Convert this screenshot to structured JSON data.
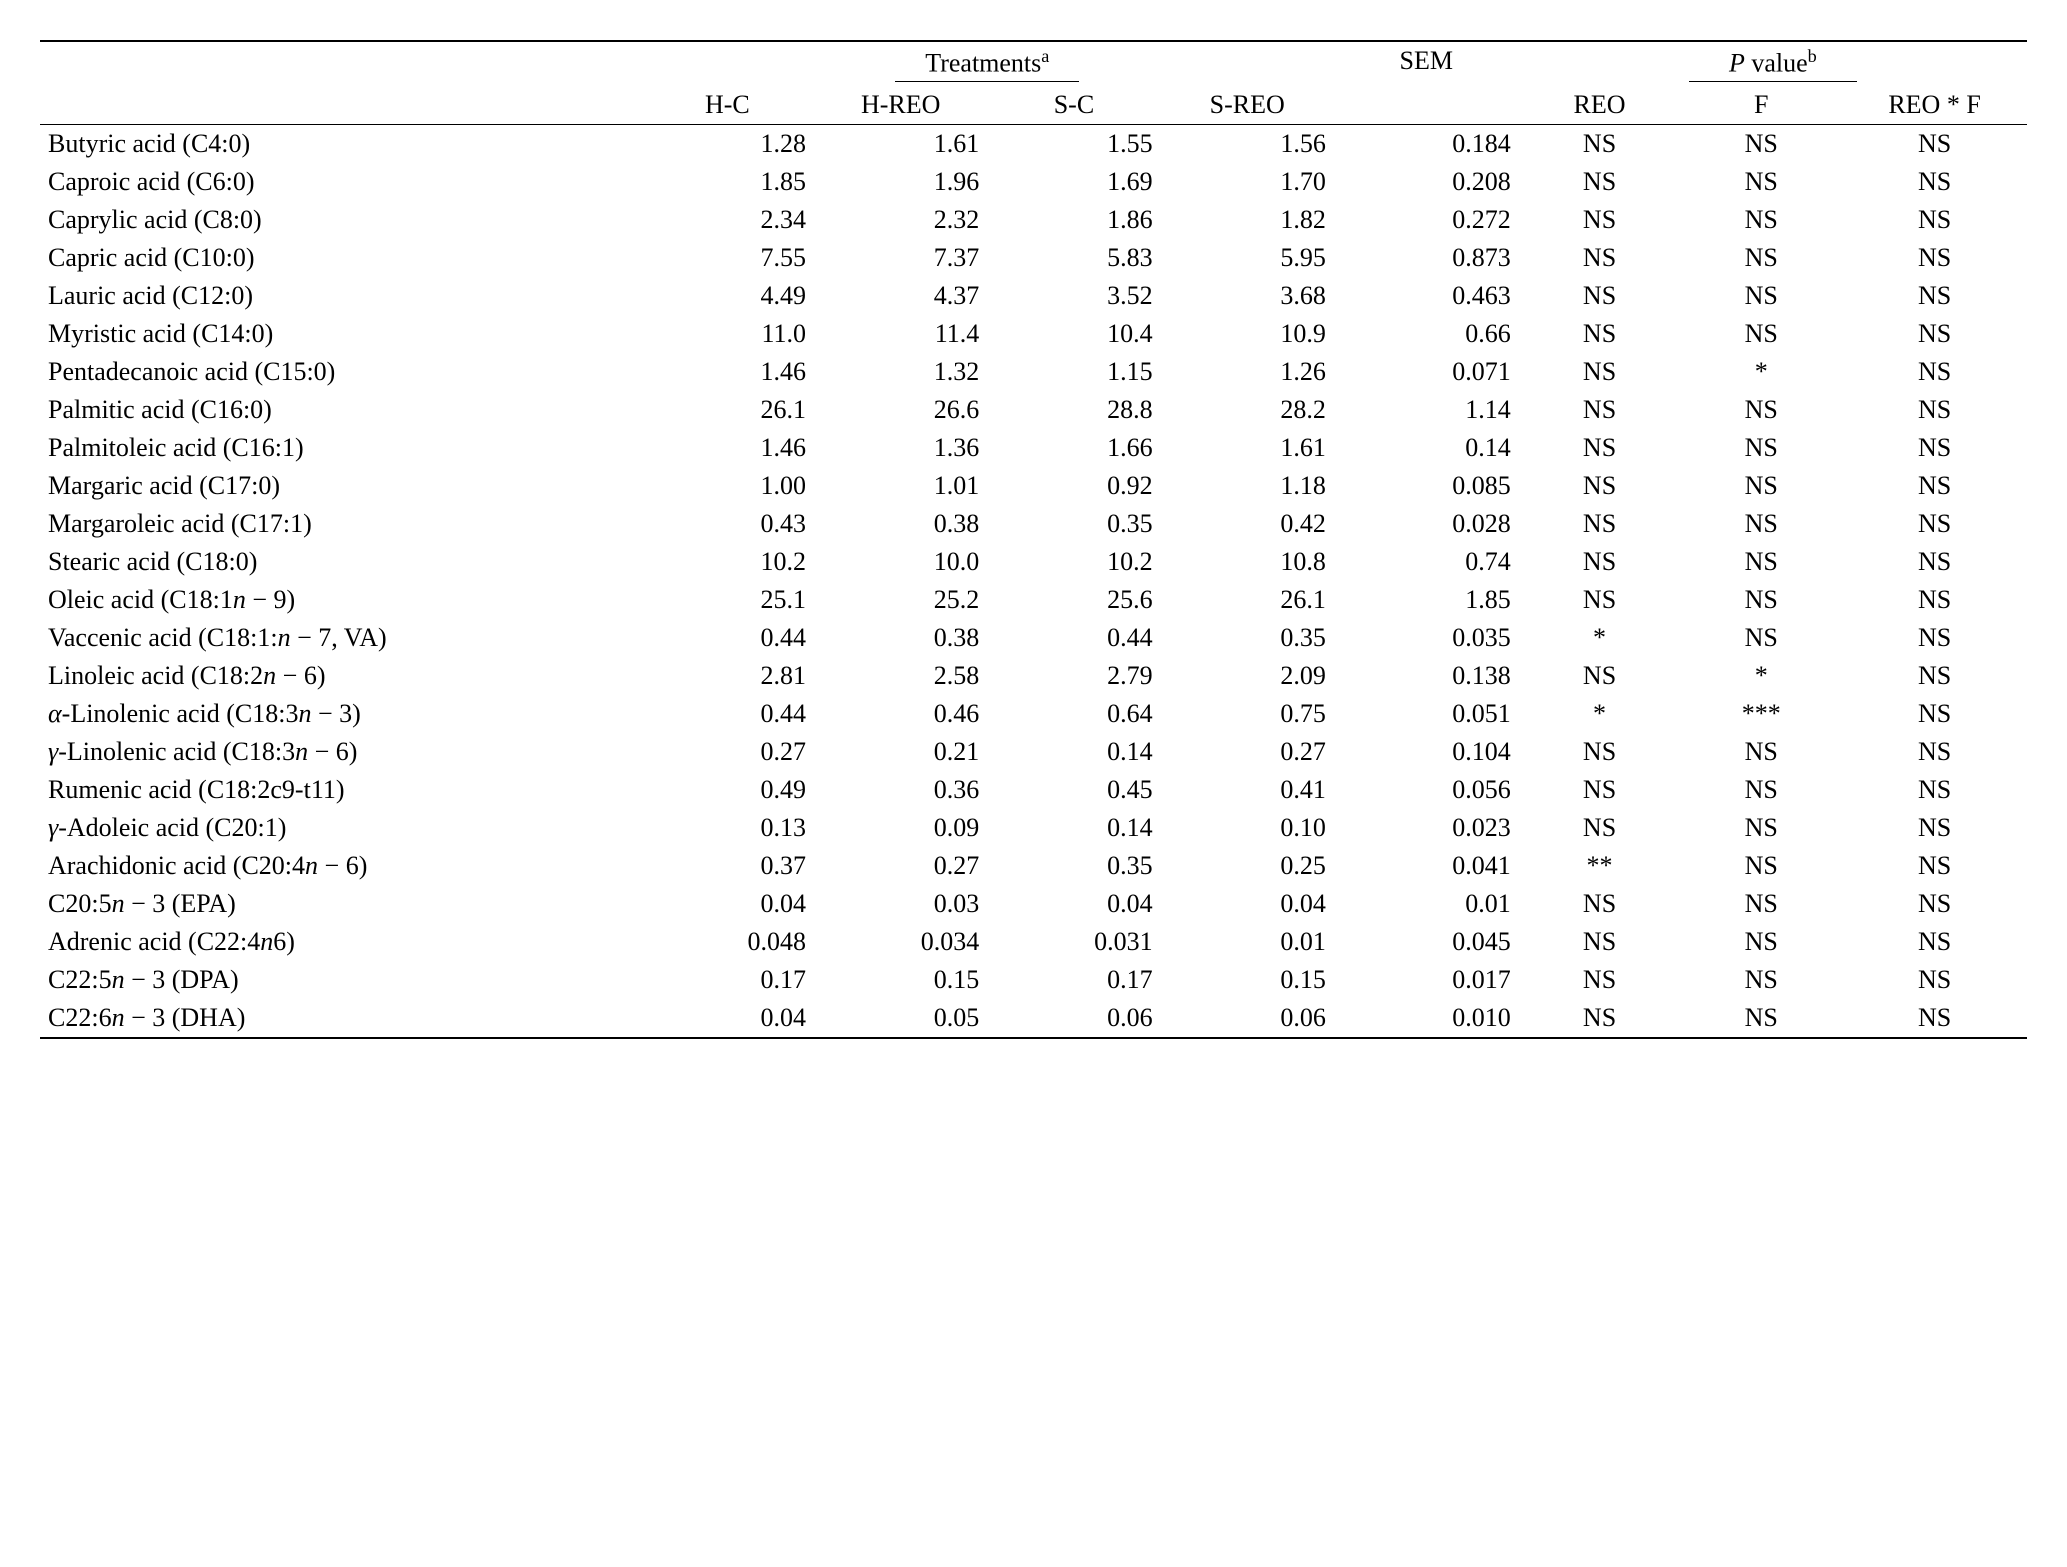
{
  "header": {
    "treatments": "Treatments",
    "treatments_sup": "a",
    "sem": "SEM",
    "pvalue_prefix_italic": "P",
    "pvalue_rest": " value",
    "pvalue_sup": "b",
    "cols": {
      "hc": "H-C",
      "hreo": "H-REO",
      "sc": "S-C",
      "sreo": "S-REO",
      "reo": "REO",
      "f": "F",
      "reoxf": "REO * F"
    }
  },
  "rows": [
    {
      "label_plain": "Butyric acid (C4:0)",
      "hc": "1.28",
      "hreo": "1.61",
      "sc": "1.55",
      "sreo": "1.56",
      "sem": "0.184",
      "reo": "NS",
      "f": "NS",
      "reoxf": "NS"
    },
    {
      "label_plain": "Caproic acid (C6:0)",
      "hc": "1.85",
      "hreo": "1.96",
      "sc": "1.69",
      "sreo": "1.70",
      "sem": "0.208",
      "reo": "NS",
      "f": "NS",
      "reoxf": "NS"
    },
    {
      "label_plain": "Caprylic acid (C8:0)",
      "hc": "2.34",
      "hreo": "2.32",
      "sc": "1.86",
      "sreo": "1.82",
      "sem": "0.272",
      "reo": "NS",
      "f": "NS",
      "reoxf": "NS"
    },
    {
      "label_plain": "Capric acid (C10:0)",
      "hc": "7.55",
      "hreo": "7.37",
      "sc": "5.83",
      "sreo": "5.95",
      "sem": "0.873",
      "reo": "NS",
      "f": "NS",
      "reoxf": "NS"
    },
    {
      "label_plain": "Lauric acid (C12:0)",
      "hc": "4.49",
      "hreo": "4.37",
      "sc": "3.52",
      "sreo": "3.68",
      "sem": "0.463",
      "reo": "NS",
      "f": "NS",
      "reoxf": "NS"
    },
    {
      "label_plain": "Myristic acid (C14:0)",
      "hc": "11.0",
      "hreo": "11.4",
      "sc": "10.4",
      "sreo": "10.9",
      "sem": "0.66",
      "reo": "NS",
      "f": "NS",
      "reoxf": "NS"
    },
    {
      "label_plain": "Pentadecanoic acid (C15:0)",
      "hc": "1.46",
      "hreo": "1.32",
      "sc": "1.15",
      "sreo": "1.26",
      "sem": "0.071",
      "reo": "NS",
      "f": "*",
      "reoxf": "NS"
    },
    {
      "label_plain": "Palmitic acid (C16:0)",
      "hc": "26.1",
      "hreo": "26.6",
      "sc": "28.8",
      "sreo": "28.2",
      "sem": "1.14",
      "reo": "NS",
      "f": "NS",
      "reoxf": "NS"
    },
    {
      "label_plain": "Palmitoleic acid (C16:1)",
      "hc": "1.46",
      "hreo": "1.36",
      "sc": "1.66",
      "sreo": "1.61",
      "sem": "0.14",
      "reo": "NS",
      "f": "NS",
      "reoxf": "NS"
    },
    {
      "label_plain": "Margaric acid (C17:0)",
      "hc": "1.00",
      "hreo": "1.01",
      "sc": "0.92",
      "sreo": "1.18",
      "sem": "0.085",
      "reo": "NS",
      "f": "NS",
      "reoxf": "NS"
    },
    {
      "label_plain": "Margaroleic acid (C17:1)",
      "hc": "0.43",
      "hreo": "0.38",
      "sc": "0.35",
      "sreo": "0.42",
      "sem": "0.028",
      "reo": "NS",
      "f": "NS",
      "reoxf": "NS"
    },
    {
      "label_plain": "Stearic acid (C18:0)",
      "hc": "10.2",
      "hreo": "10.0",
      "sc": "10.2",
      "sreo": "10.8",
      "sem": "0.74",
      "reo": "NS",
      "f": "NS",
      "reoxf": "NS"
    },
    {
      "label_html": "Oleic acid (C18:1<span class=\"italic\">n</span> − 9)",
      "hc": "25.1",
      "hreo": "25.2",
      "sc": "25.6",
      "sreo": "26.1",
      "sem": "1.85",
      "reo": "NS",
      "f": "NS",
      "reoxf": "NS"
    },
    {
      "label_html": "Vaccenic acid (C18:1:<span class=\"italic\">n</span> − 7, VA)",
      "hc": "0.44",
      "hreo": "0.38",
      "sc": "0.44",
      "sreo": "0.35",
      "sem": "0.035",
      "reo": "*",
      "f": "NS",
      "reoxf": "NS"
    },
    {
      "label_html": "Linoleic acid (C18:2<span class=\"italic\">n</span> − 6)",
      "hc": "2.81",
      "hreo": "2.58",
      "sc": "2.79",
      "sreo": "2.09",
      "sem": "0.138",
      "reo": "NS",
      "f": "*",
      "reoxf": "NS"
    },
    {
      "label_html": "<span class=\"italic\">α</span>-Linolenic acid (C18:3<span class=\"italic\">n</span> − 3)",
      "hc": "0.44",
      "hreo": "0.46",
      "sc": "0.64",
      "sreo": "0.75",
      "sem": "0.051",
      "reo": "*",
      "f": "***",
      "reoxf": "NS"
    },
    {
      "label_html": "<span class=\"italic\">γ</span>-Linolenic acid (C18:3<span class=\"italic\">n</span> − 6)",
      "hc": "0.27",
      "hreo": "0.21",
      "sc": "0.14",
      "sreo": "0.27",
      "sem": "0.104",
      "reo": "NS",
      "f": "NS",
      "reoxf": "NS"
    },
    {
      "label_plain": "Rumenic acid (C18:2c9-t11)",
      "hc": "0.49",
      "hreo": "0.36",
      "sc": "0.45",
      "sreo": "0.41",
      "sem": "0.056",
      "reo": "NS",
      "f": "NS",
      "reoxf": "NS"
    },
    {
      "label_html": "<span class=\"italic\">γ</span>-Adoleic acid (C20:1)",
      "hc": "0.13",
      "hreo": "0.09",
      "sc": "0.14",
      "sreo": "0.10",
      "sem": "0.023",
      "reo": "NS",
      "f": "NS",
      "reoxf": "NS"
    },
    {
      "label_html": "Arachidonic acid (C20:4<span class=\"italic\">n</span> − 6)",
      "hc": "0.37",
      "hreo": "0.27",
      "sc": "0.35",
      "sreo": "0.25",
      "sem": "0.041",
      "reo": "**",
      "f": "NS",
      "reoxf": "NS"
    },
    {
      "label_html": "C20:5<span class=\"italic\">n</span> − 3 (EPA)",
      "hc": "0.04",
      "hreo": "0.03",
      "sc": "0.04",
      "sreo": "0.04",
      "sem": "0.01",
      "reo": "NS",
      "f": "NS",
      "reoxf": "NS"
    },
    {
      "label_html": "Adrenic acid (C22:4<span class=\"italic\">n</span>6)",
      "hc": "0.048",
      "hreo": "0.034",
      "sc": "0.031",
      "sreo": "0.01",
      "sem": "0.045",
      "reo": "NS",
      "f": "NS",
      "reoxf": "NS"
    },
    {
      "label_html": "C22:5<span class=\"italic\">n</span> − 3 (DPA)",
      "hc": "0.17",
      "hreo": "0.15",
      "sc": "0.17",
      "sreo": "0.15",
      "sem": "0.017",
      "reo": "NS",
      "f": "NS",
      "reoxf": "NS"
    },
    {
      "label_html": "C22:6<span class=\"italic\">n</span> − 3 (DHA)",
      "hc": "0.04",
      "hreo": "0.05",
      "sc": "0.06",
      "sreo": "0.06",
      "sem": "0.010",
      "reo": "NS",
      "f": "NS",
      "reoxf": "NS"
    }
  ]
}
